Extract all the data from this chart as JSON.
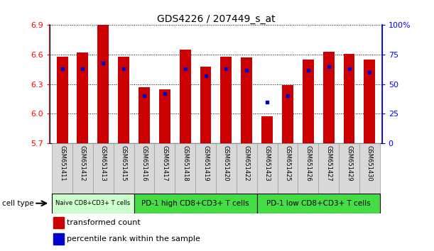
{
  "title": "GDS4226 / 207449_s_at",
  "samples": [
    "GSM651411",
    "GSM651412",
    "GSM651413",
    "GSM651415",
    "GSM651416",
    "GSM651417",
    "GSM651418",
    "GSM651419",
    "GSM651420",
    "GSM651422",
    "GSM651423",
    "GSM651425",
    "GSM651426",
    "GSM651427",
    "GSM651429",
    "GSM651430"
  ],
  "transformed_count": [
    6.58,
    6.62,
    6.9,
    6.58,
    6.27,
    6.25,
    6.65,
    6.48,
    6.58,
    6.57,
    5.97,
    6.29,
    6.55,
    6.63,
    6.61,
    6.55
  ],
  "percentile_rank": [
    63,
    63,
    68,
    63,
    40,
    42,
    63,
    57,
    63,
    62,
    35,
    40,
    62,
    65,
    63,
    60
  ],
  "y_min": 5.7,
  "y_max": 6.9,
  "y_ticks": [
    5.7,
    6.0,
    6.3,
    6.6,
    6.9
  ],
  "y2_ticks": [
    0,
    25,
    50,
    75,
    100
  ],
  "cell_groups": [
    {
      "label": "Naive CD8+CD3+ T cells",
      "start": 0,
      "end": 3,
      "color": "#ccffcc"
    },
    {
      "label": "PD-1 high CD8+CD3+ T cells",
      "start": 4,
      "end": 9,
      "color": "#44dd44"
    },
    {
      "label": "PD-1 low CD8+CD3+ T cells",
      "start": 10,
      "end": 15,
      "color": "#44dd44"
    }
  ],
  "bar_color": "#cc0000",
  "dot_color": "#0000cc",
  "bar_width": 0.55,
  "cell_type_label": "cell type",
  "legend_bar_label": "transformed count",
  "legend_dot_label": "percentile rank within the sample"
}
